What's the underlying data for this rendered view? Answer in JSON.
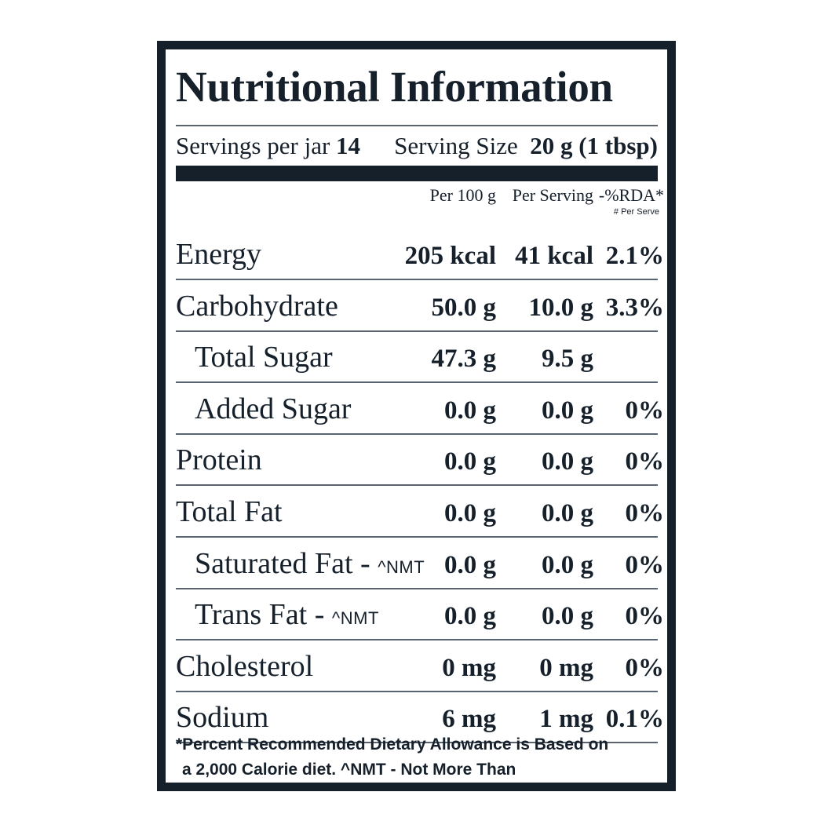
{
  "title": "Nutritional Information",
  "servings": {
    "per_jar_label": "Servings per jar",
    "per_jar_value": "14",
    "size_label": "Serving Size",
    "size_value": "20 g (1 tbsp)"
  },
  "columns": {
    "per100": "Per 100 g",
    "perServing": "Per Serving",
    "rda": "-%RDA*",
    "rda_sub": "# Per Serve"
  },
  "rows": [
    {
      "name": "Energy",
      "nmt": "",
      "per100": "205 kcal",
      "perServing": "41 kcal",
      "rda": "2.1%",
      "indent": false
    },
    {
      "name": "Carbohydrate",
      "nmt": "",
      "per100": "50.0 g",
      "perServing": "10.0 g",
      "rda": "3.3%",
      "indent": false
    },
    {
      "name": "Total Sugar",
      "nmt": "",
      "per100": "47.3 g",
      "perServing": "9.5 g",
      "rda": "",
      "indent": true
    },
    {
      "name": "Added Sugar",
      "nmt": "",
      "per100": "0.0 g",
      "perServing": "0.0 g",
      "rda": "0%",
      "indent": true
    },
    {
      "name": "Protein",
      "nmt": "",
      "per100": "0.0 g",
      "perServing": "0.0 g",
      "rda": "0%",
      "indent": false
    },
    {
      "name": "Total Fat",
      "nmt": "",
      "per100": "0.0 g",
      "perServing": "0.0 g",
      "rda": "0%",
      "indent": false
    },
    {
      "name": "Saturated Fat - ",
      "nmt": "^NMT",
      "per100": "0.0 g",
      "perServing": "0.0 g",
      "rda": "0%",
      "indent": true
    },
    {
      "name": "Trans Fat - ",
      "nmt": "^NMT",
      "per100": "0.0 g",
      "perServing": "0.0 g",
      "rda": "0%",
      "indent": true
    },
    {
      "name": "Cholesterol",
      "nmt": "",
      "per100": "0 mg",
      "perServing": "0 mg",
      "rda": "0%",
      "indent": false
    },
    {
      "name": "Sodium",
      "nmt": "",
      "per100": "6 mg",
      "perServing": "1 mg",
      "rda": "0.1%",
      "indent": false
    }
  ],
  "footnote": {
    "line1": "*Percent Recommended Dietary Allowance is Based on",
    "line2": "a 2,000 Calorie diet. ^NMT - Not More Than"
  },
  "colors": {
    "ink": "#16202b",
    "rule": "#5a6470"
  }
}
